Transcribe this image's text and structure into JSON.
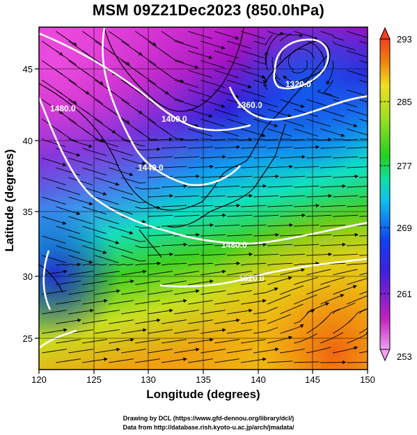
{
  "title": "MSM 09Z21Dec2023 (850.0hPa)",
  "xaxis": {
    "label": "Longitude (degrees)",
    "range": [
      120,
      150
    ],
    "ticks": [
      "120",
      "125",
      "130",
      "135",
      "140",
      "145",
      "150"
    ]
  },
  "yaxis": {
    "label": "Latitude  (degrees)",
    "range": [
      22.5,
      47.5
    ],
    "ticks": [
      "25",
      "30",
      "35",
      "40",
      "45"
    ]
  },
  "colorbar": {
    "ticks": [
      "293",
      "285",
      "277",
      "269",
      "261",
      "253"
    ],
    "range": [
      253,
      293
    ],
    "colors": [
      "#f0a0f0",
      "#c020c0",
      "#4020e0",
      "#1040f0",
      "#10c0f0",
      "#10e0a0",
      "#20d020",
      "#a0e020",
      "#f0e020",
      "#f08010",
      "#f04020"
    ]
  },
  "contours": {
    "labels": [
      "1320.0",
      "1360.0",
      "1400.0",
      "1440.0",
      "1480.0",
      "1480.0",
      "1520.0"
    ],
    "color": "#ffffff"
  },
  "credits": {
    "line1": "Drawing by DCL (https://www.gfd-dennou.org/library/dcl/)",
    "line2": "Data from http://database.rish.kyoto-u.ac.jp/arch/jmadata/"
  }
}
